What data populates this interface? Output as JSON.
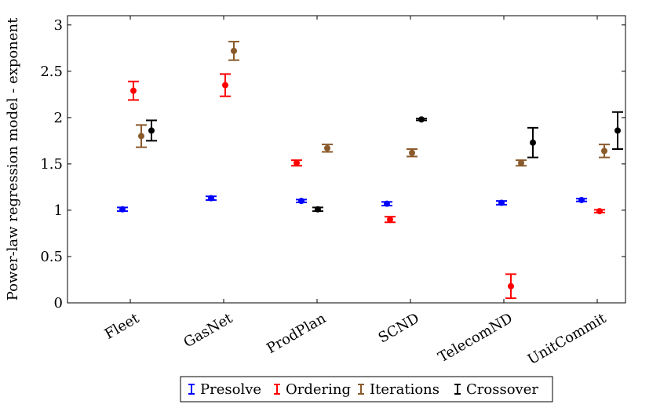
{
  "chart_data": {
    "type": "scatter",
    "ylabel": "Power-law regression model - exponent",
    "xlabel": "",
    "title": "",
    "ylim": [
      0,
      3.1
    ],
    "yticks": [
      "0",
      "0.5",
      "1",
      "1.5",
      "2",
      "2.5",
      "3"
    ],
    "ytick_values": [
      0,
      0.5,
      1,
      1.5,
      2,
      2.5,
      3
    ],
    "categories": [
      "Fleet",
      "GasNet",
      "ProdPlan",
      "SCND",
      "TelecomND",
      "UnitCommit"
    ],
    "legend_position": "bottom-center",
    "grid": false,
    "series": [
      {
        "name": "Presolve",
        "color": "#0000ff",
        "values": [
          1.01,
          1.13,
          1.1,
          1.07,
          1.08,
          1.11
        ],
        "errors": [
          0.02,
          0.02,
          0.015,
          0.02,
          0.02,
          0.015
        ]
      },
      {
        "name": "Ordering",
        "color": "#ff0000",
        "values": [
          2.29,
          2.35,
          1.51,
          0.9,
          0.18,
          0.99
        ],
        "errors": [
          0.1,
          0.12,
          0.03,
          0.03,
          0.13,
          0.015
        ]
      },
      {
        "name": "Iterations",
        "color": "#8b5a2b",
        "values": [
          1.8,
          2.72,
          1.67,
          1.62,
          1.51,
          1.64
        ],
        "errors": [
          0.12,
          0.1,
          0.04,
          0.04,
          0.03,
          0.07
        ]
      },
      {
        "name": "Crossover",
        "color": "#000000",
        "values": [
          1.86,
          null,
          1.01,
          1.98,
          1.73,
          1.86
        ],
        "errors": [
          0.11,
          null,
          0.02,
          0.01,
          0.16,
          0.2
        ]
      }
    ]
  }
}
